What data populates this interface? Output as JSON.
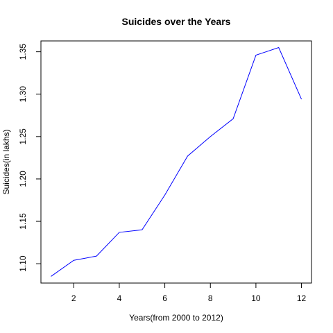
{
  "chart_data": {
    "type": "line",
    "title": "Suicides over the Years",
    "xlabel": "Years(from 2000 to 2012)",
    "ylabel": "Suicides(in lakhs)",
    "x": [
      1,
      2,
      3,
      4,
      5,
      6,
      7,
      8,
      9,
      10,
      11,
      12
    ],
    "series": [
      {
        "values": [
          1.085,
          1.104,
          1.109,
          1.137,
          1.14,
          1.181,
          1.227,
          1.25,
          1.271,
          1.346,
          1.355,
          1.294
        ]
      }
    ],
    "xlim": [
      0.56,
      12.44
    ],
    "ylim": [
      1.0772,
      1.3628
    ],
    "xticks": [
      2,
      4,
      6,
      8,
      10,
      12
    ],
    "xtick_labels": [
      "2",
      "4",
      "6",
      "8",
      "10",
      "12"
    ],
    "yticks": [
      1.1,
      1.15,
      1.2,
      1.25,
      1.3,
      1.35
    ],
    "ytick_labels": [
      "1.10",
      "1.15",
      "1.20",
      "1.25",
      "1.30",
      "1.35"
    ],
    "grid": false,
    "line_color": "#0000ff"
  }
}
